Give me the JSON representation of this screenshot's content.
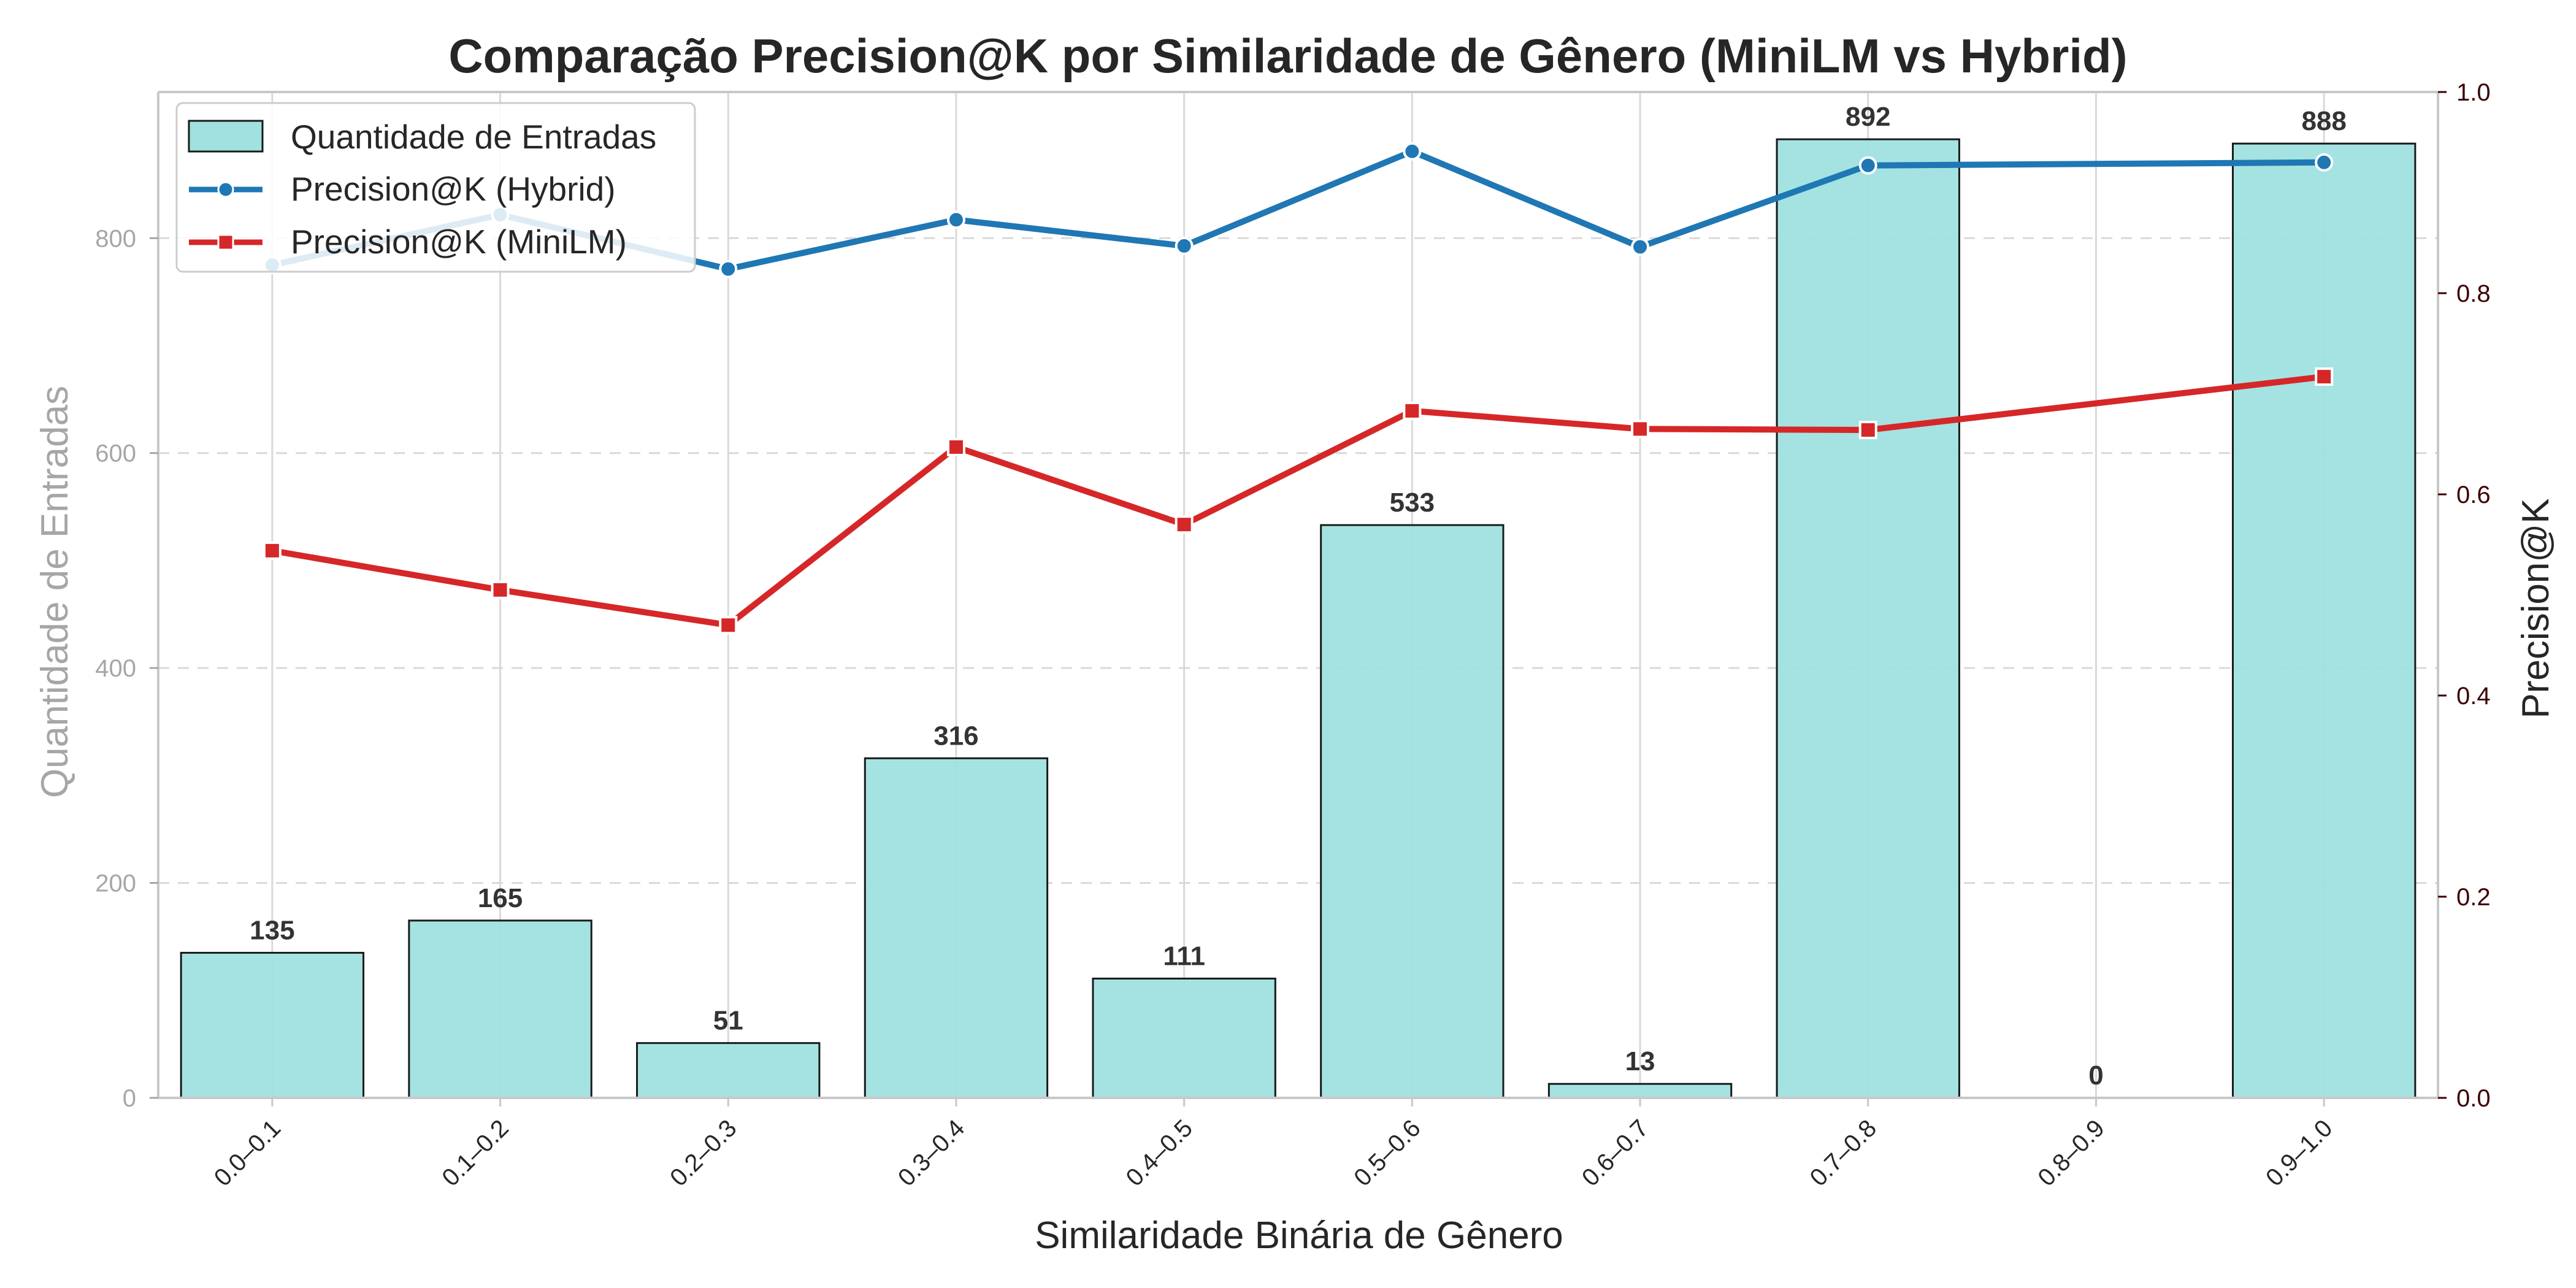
{
  "chart_data": {
    "type": "bar",
    "title": "Comparação Precision@K por Similaridade de Gênero (MiniLM vs Hybrid)",
    "xlabel": "Similaridade Binária de Gênero",
    "ylabel_left": "Quantidade de Entradas",
    "ylabel_right": "Precision@K",
    "categories": [
      "0.0–0.1",
      "0.1–0.2",
      "0.2–0.3",
      "0.3–0.4",
      "0.4–0.5",
      "0.5–0.6",
      "0.6–0.7",
      "0.7–0.8",
      "0.8–0.9",
      "0.9–1.0"
    ],
    "bars": {
      "name": "Quantidade de Entradas",
      "values": [
        135,
        165,
        51,
        316,
        111,
        533,
        13,
        892,
        0,
        888
      ],
      "labels": [
        "135",
        "165",
        "51",
        "316",
        "111",
        "533",
        "13",
        "892",
        "0",
        "888"
      ],
      "color": "#9fe2df"
    },
    "series": [
      {
        "name": "Precision@K (Hybrid)",
        "axis": "right",
        "marker": "circle",
        "color": "#1f77b4",
        "values": [
          0.828,
          0.878,
          0.824,
          0.873,
          0.847,
          0.941,
          0.846,
          0.927,
          null,
          0.93
        ]
      },
      {
        "name": "Precision@K (MiniLM)",
        "axis": "right",
        "marker": "square",
        "color": "#d62728",
        "values": [
          0.544,
          0.505,
          0.47,
          0.647,
          0.57,
          0.683,
          0.665,
          0.664,
          null,
          0.717
        ]
      }
    ],
    "ylim_left": [
      0,
      936
    ],
    "ylim_right": [
      0.0,
      1.0
    ],
    "yticks_left": [
      0,
      200,
      400,
      600,
      800
    ],
    "yticks_left_labels": [
      "0",
      "200",
      "400",
      "600",
      "800"
    ],
    "yticks_right": [
      0.0,
      0.2,
      0.4,
      0.6,
      0.8,
      1.0
    ],
    "yticks_right_labels": [
      "0.0",
      "0.2",
      "0.4",
      "0.6",
      "0.8",
      "1.0"
    ],
    "grid": true,
    "legend_position": "top-left",
    "colors": {
      "left_axis_text": "#a6a6a6",
      "right_axis_tick": "#3d0000",
      "grid": "#d9d9d9",
      "bar_edge": "#1a1a1a",
      "spine": "#c8c8c8"
    }
  }
}
